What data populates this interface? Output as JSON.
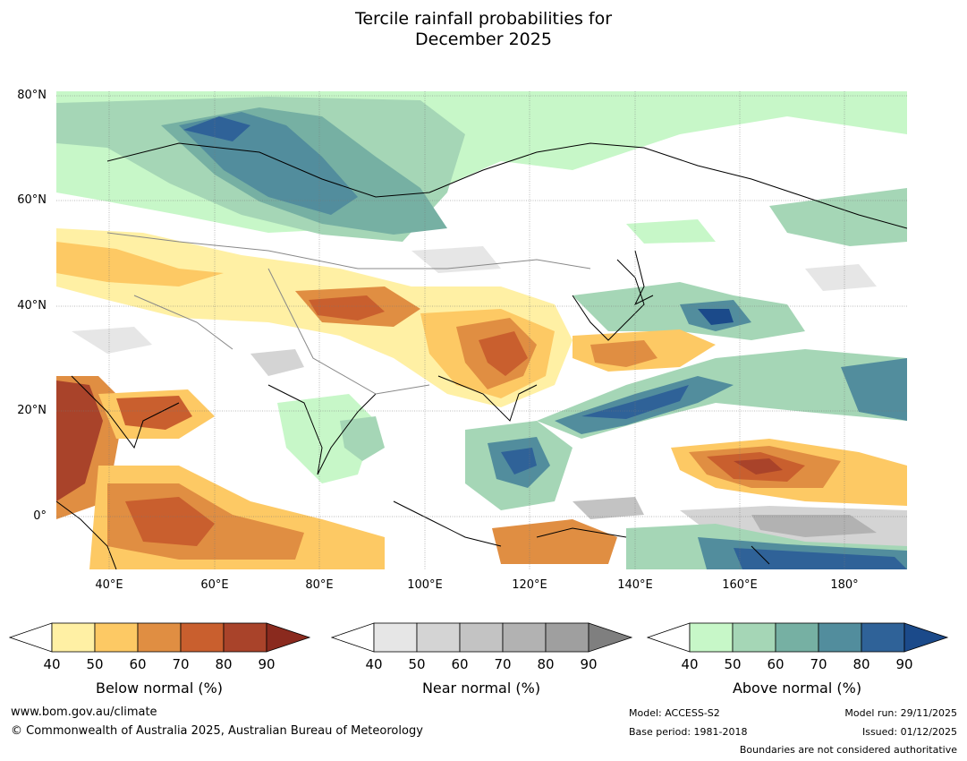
{
  "title": {
    "line1": "Tercile rainfall probabilities for",
    "line2": "December 2025"
  },
  "map": {
    "lat_labels": [
      "80°N",
      "60°N",
      "40°N",
      "20°N",
      "0°"
    ],
    "lon_labels": [
      "40°E",
      "60°E",
      "80°E",
      "100°E",
      "120°E",
      "140°E",
      "160°E",
      "180°"
    ]
  },
  "colorbars": [
    {
      "name": "Below normal (%)",
      "ticks": [
        "40",
        "50",
        "60",
        "70",
        "80",
        "90"
      ],
      "colors": [
        "#fff0a4",
        "#fdc964",
        "#e08e42",
        "#c95f2e",
        "#a9432a",
        "#8a2a1e"
      ]
    },
    {
      "name": "Near normal (%)",
      "ticks": [
        "40",
        "50",
        "60",
        "70",
        "80",
        "90"
      ],
      "colors": [
        "#e6e6e6",
        "#d4d4d4",
        "#c3c3c3",
        "#b2b2b2",
        "#9f9f9f",
        "#7f7f7f"
      ]
    },
    {
      "name": "Above normal (%)",
      "ticks": [
        "40",
        "50",
        "60",
        "70",
        "80",
        "90"
      ],
      "colors": [
        "#c7f7c8",
        "#a5d6b6",
        "#76b0a3",
        "#528d9d",
        "#2f6298",
        "#1b4a8a"
      ]
    }
  ],
  "footer": {
    "website": "www.bom.gov.au/climate",
    "copyright": "© Commonwealth of Australia 2025, Australian Bureau of Meteorology",
    "model": "Model: ACCESS-S2",
    "base_period": "Base period: 1981-2018",
    "model_run": "Model run: 29/11/2025",
    "issued": "Issued: 01/12/2025",
    "disclaimer": "Boundaries are not considered authoritative"
  }
}
